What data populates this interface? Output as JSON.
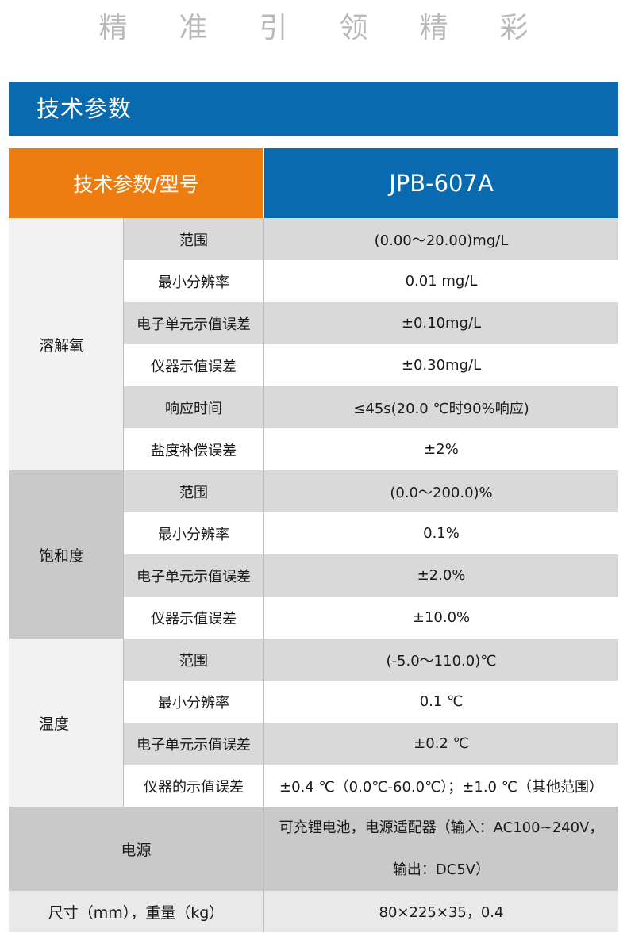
{
  "slogan": [
    "精",
    "准",
    "引",
    "领",
    "精",
    "彩"
  ],
  "section_title": "技术参数",
  "table_header": {
    "label": "技术参数/型号",
    "model": "JPB-607A"
  },
  "groups": [
    {
      "name": "溶解氧",
      "rows": [
        {
          "name": "范围",
          "value": "(0.00～20.00)mg/L"
        },
        {
          "name": "最小分辨率",
          "value": "0.01 mg/L"
        },
        {
          "name": "电子单元示值误差",
          "value": "±0.10mg/L"
        },
        {
          "name": "仪器示值误差",
          "value": "±0.30mg/L"
        },
        {
          "name": "响应时间",
          "value": "≤45s(20.0 ℃时90%响应)"
        },
        {
          "name": "盐度补偿误差",
          "value": "±2%"
        }
      ]
    },
    {
      "name": "饱和度",
      "rows": [
        {
          "name": "范围",
          "value": "(0.0～200.0)%"
        },
        {
          "name": "最小分辨率",
          "value": "0.1%"
        },
        {
          "name": "电子单元示值误差",
          "value": "±2.0%"
        },
        {
          "name": "仪器示值误差",
          "value": "±10.0%"
        }
      ]
    },
    {
      "name": "温度",
      "rows": [
        {
          "name": "范围",
          "value": "(-5.0～110.0)℃"
        },
        {
          "name": "最小分辨率",
          "value": "0.1 ℃"
        },
        {
          "name": "电子单元示值误差",
          "value": "±0.2 ℃"
        },
        {
          "name": "仪器的示值误差",
          "value": "±0.4 ℃（0.0℃-60.0℃）；±1.0 ℃（其他范围）"
        }
      ]
    }
  ],
  "power": {
    "label": "电源",
    "value_line1": "可充锂电池，电源适配器（输入：AC100~240V，",
    "value_line2": "输出：DC5V）"
  },
  "size": {
    "label": "尺寸（mm），重量（kg）",
    "value": "80×225×35，0.4"
  }
}
